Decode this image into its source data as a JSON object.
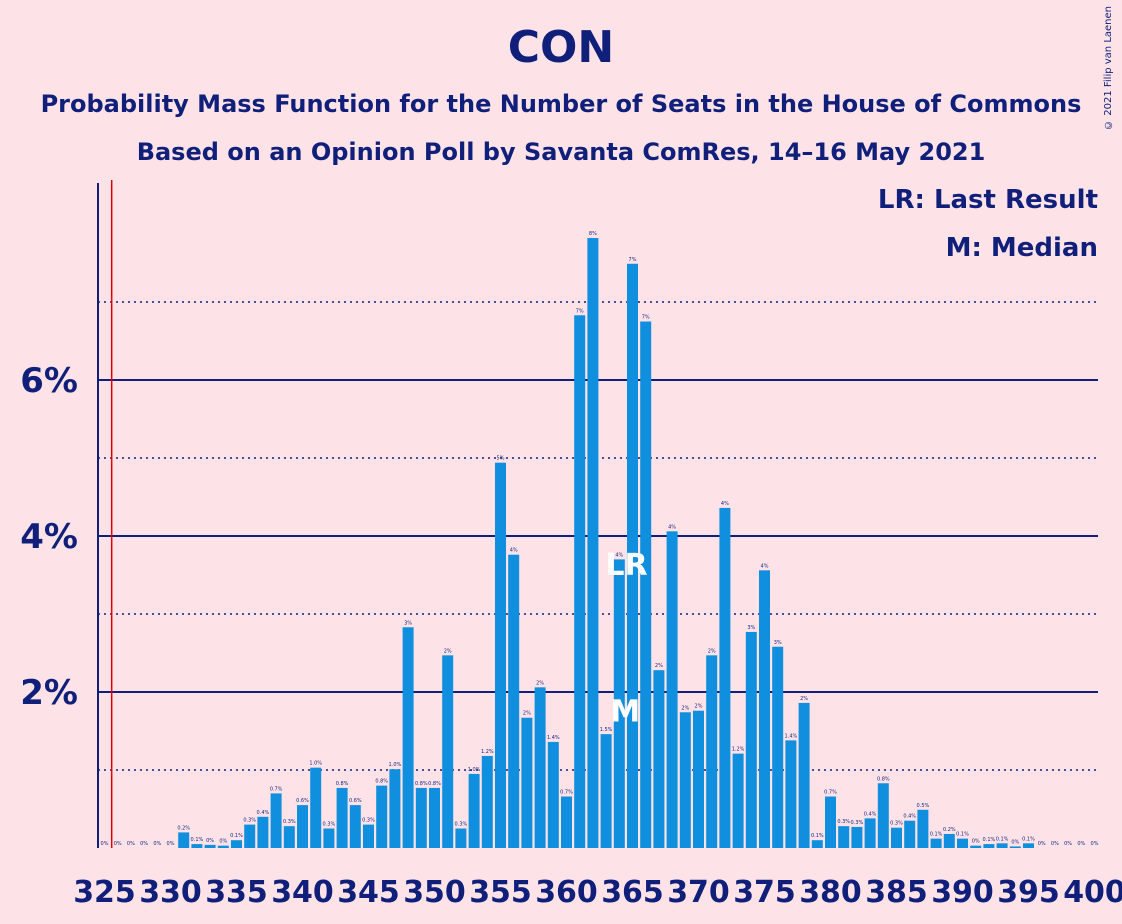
{
  "chart_data": {
    "type": "bar",
    "title": "CON",
    "subtitle": "Probability Mass Function for the Number of Seats in the House of Commons",
    "subtitle2": "Based on an Opinion Poll by Savanta ComRes, 14–16 May 2021",
    "copyright": "© 2021 Filip van Laenen",
    "legend": [
      "LR: Last Result",
      "M: Median"
    ],
    "x": [
      325,
      326,
      327,
      328,
      329,
      330,
      331,
      332,
      333,
      334,
      335,
      336,
      337,
      338,
      339,
      340,
      341,
      342,
      343,
      344,
      345,
      346,
      347,
      348,
      349,
      350,
      351,
      352,
      353,
      354,
      355,
      356,
      357,
      358,
      359,
      360,
      361,
      362,
      363,
      364,
      365,
      366,
      367,
      368,
      369,
      370,
      371,
      372,
      373,
      374,
      375,
      376,
      377,
      378,
      379,
      380,
      381,
      382,
      383,
      384,
      385,
      386,
      387,
      388,
      389,
      390,
      391,
      392,
      393,
      394,
      395,
      396,
      397,
      398,
      399,
      400
    ],
    "values": [
      0,
      0,
      0,
      0,
      0,
      0,
      0.2,
      0.05,
      0.04,
      0.03,
      0.1,
      0.3,
      0.4,
      0.7,
      0.28,
      0.55,
      1.03,
      0.25,
      0.77,
      0.55,
      0.3,
      0.8,
      1.01,
      2.83,
      0.77,
      0.77,
      2.47,
      0.25,
      0.95,
      1.18,
      4.94,
      3.76,
      1.67,
      2.06,
      1.36,
      0.66,
      6.83,
      7.82,
      1.46,
      3.7,
      7.49,
      6.75,
      2.28,
      4.06,
      1.74,
      1.76,
      2.47,
      4.36,
      1.21,
      2.77,
      3.56,
      2.58,
      1.38,
      1.86,
      0.1,
      0.66,
      0.28,
      0.27,
      0.38,
      0.83,
      0.26,
      0.35,
      0.49,
      0.12,
      0.18,
      0.12,
      0.03,
      0.05,
      0.06,
      0.02,
      0.06,
      0,
      0,
      0,
      0,
      0
    ],
    "bar_labels": [
      "0%",
      "0%",
      "0%",
      "0%",
      "0%",
      "0%",
      "0.2%",
      "0.1%",
      "0%",
      "0%",
      "0.1%",
      "0.3%",
      "0.4%",
      "0.7%",
      "0.3%",
      "0.6%",
      "1.0%",
      "0.3%",
      "0.8%",
      "0.6%",
      "0.3%",
      "0.8%",
      "1.0%",
      "3%",
      "0.8%",
      "0.8%",
      "2%",
      "0.3%",
      "1.0%",
      "1.2%",
      "5%",
      "4%",
      "2%",
      "2%",
      "1.4%",
      "0.7%",
      "7%",
      "8%",
      "1.5%",
      "4%",
      "7%",
      "7%",
      "2%",
      "4%",
      "2%",
      "2%",
      "2%",
      "4%",
      "1.2%",
      "3%",
      "4%",
      "3%",
      "1.4%",
      "2%",
      "0.1%",
      "0.7%",
      "0.3%",
      "0.3%",
      "0.4%",
      "0.8%",
      "0.3%",
      "0.4%",
      "0.5%",
      "0.1%",
      "0.2%",
      "0.1%",
      "0%",
      "0.1%",
      "0.1%",
      "0%",
      "0.1%",
      "0%",
      "0%",
      "0%",
      "0%",
      "0%"
    ],
    "xticks": [
      "325",
      "330",
      "335",
      "340",
      "345",
      "350",
      "355",
      "360",
      "365",
      "370",
      "375",
      "380",
      "385",
      "390",
      "395",
      "400"
    ],
    "yticks": [
      "2%",
      "4%",
      "6%"
    ],
    "ylim": [
      0,
      8.5
    ],
    "grid": "solid major lines at 2% steps, dotted minor lines at odd percents",
    "majority_line_x": 326,
    "last_result": {
      "x": 365,
      "label": "LR"
    },
    "median": {
      "x": 364,
      "label": "M"
    },
    "colors": {
      "bar": "#0F8FDD",
      "text": "#0F1F7A",
      "background": "#FDE3E8",
      "majority_line": "#E00000",
      "marker_text": "#FFFFFF"
    }
  }
}
